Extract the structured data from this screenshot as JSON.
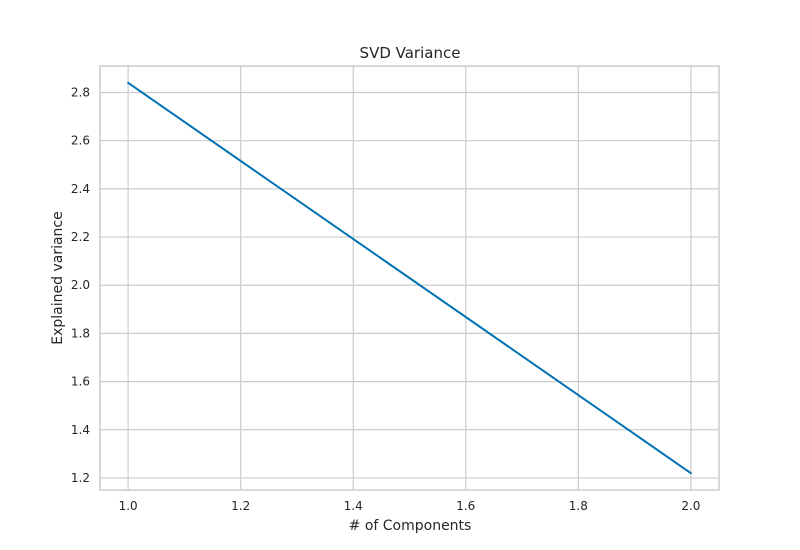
{
  "chart_data": {
    "type": "line",
    "title": "SVD Variance",
    "xlabel": "# of Components",
    "ylabel": "Explained variance",
    "x": [
      1.0,
      2.0
    ],
    "series": [
      {
        "values": [
          2.84,
          1.22
        ]
      }
    ],
    "xlim": [
      0.95,
      2.05
    ],
    "ylim": [
      1.15,
      2.91
    ],
    "xticks": [
      "1.0",
      "1.2",
      "1.4",
      "1.6",
      "1.8",
      "2.0"
    ],
    "yticks": [
      "1.2",
      "1.4",
      "1.6",
      "1.8",
      "2.0",
      "2.2",
      "2.4",
      "2.6",
      "2.8"
    ],
    "grid": true,
    "legend": false,
    "colors": {
      "line": "#0072b2",
      "grid": "#cccccc",
      "spine": "#cccccc",
      "background": "#ffffff"
    }
  }
}
